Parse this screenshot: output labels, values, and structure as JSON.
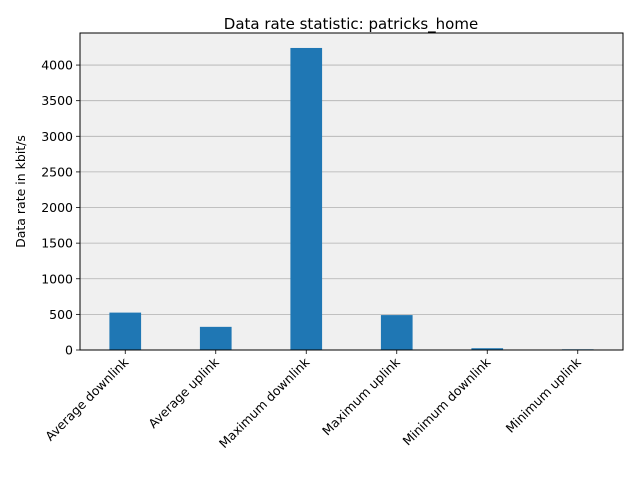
{
  "chart_data": {
    "type": "bar",
    "title": "Data rate statistic: patricks_home",
    "xlabel": "",
    "ylabel": "Data rate in kbit/s",
    "categories": [
      "Average downlink",
      "Average uplink",
      "Maximum downlink",
      "Maximum uplink",
      "Minimum downlink",
      "Minimum uplink"
    ],
    "values": [
      525,
      325,
      4240,
      490,
      25,
      10
    ],
    "ylim": [
      0,
      4450
    ],
    "yticks": [
      0,
      500,
      1000,
      1500,
      2000,
      2500,
      3000,
      3500,
      4000
    ],
    "grid": "y",
    "legend": "none",
    "bar_color": "#1f77b4",
    "plot_background": "#f0f0f0",
    "grid_color": "#b0b0b0"
  }
}
